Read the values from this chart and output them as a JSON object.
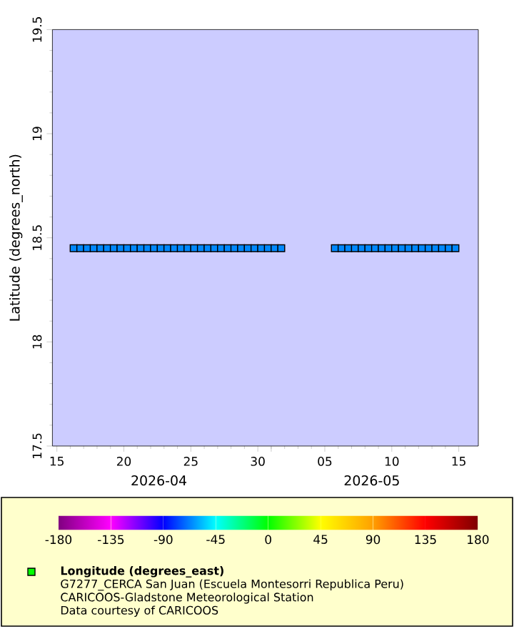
{
  "chart_data": {
    "type": "scatter",
    "ylabel": "Latitude (degrees_north)",
    "clabel": "Longitude (degrees_east)",
    "x": [
      "2026-04-16T06:00",
      "2026-04-16T18:00",
      "2026-04-17T06:00",
      "2026-04-17T18:00",
      "2026-04-18T06:00",
      "2026-04-18T18:00",
      "2026-04-19T06:00",
      "2026-04-19T18:00",
      "2026-04-20T06:00",
      "2026-04-20T18:00",
      "2026-04-21T06:00",
      "2026-04-21T18:00",
      "2026-04-22T06:00",
      "2026-04-22T18:00",
      "2026-04-23T06:00",
      "2026-04-23T18:00",
      "2026-04-24T06:00",
      "2026-04-24T18:00",
      "2026-04-25T06:00",
      "2026-04-25T18:00",
      "2026-04-26T06:00",
      "2026-04-26T18:00",
      "2026-04-27T06:00",
      "2026-04-27T18:00",
      "2026-04-28T06:00",
      "2026-04-28T18:00",
      "2026-04-29T06:00",
      "2026-04-29T18:00",
      "2026-04-30T06:00",
      "2026-04-30T18:00",
      "2026-05-01T06:00",
      "2026-05-01T18:00",
      "2026-05-05T18:00",
      "2026-05-06T06:00",
      "2026-05-06T18:00",
      "2026-05-07T06:00",
      "2026-05-07T18:00",
      "2026-05-08T06:00",
      "2026-05-08T18:00",
      "2026-05-09T06:00",
      "2026-05-09T18:00",
      "2026-05-10T06:00",
      "2026-05-10T18:00",
      "2026-05-11T06:00",
      "2026-05-11T18:00",
      "2026-05-12T06:00",
      "2026-05-12T18:00",
      "2026-05-13T06:00",
      "2026-05-13T18:00",
      "2026-05-14T06:00",
      "2026-05-14T18:00"
    ],
    "values": [
      18.45,
      18.45,
      18.45,
      18.45,
      18.45,
      18.45,
      18.45,
      18.45,
      18.45,
      18.45,
      18.45,
      18.45,
      18.45,
      18.45,
      18.45,
      18.45,
      18.45,
      18.45,
      18.45,
      18.45,
      18.45,
      18.45,
      18.45,
      18.45,
      18.45,
      18.45,
      18.45,
      18.45,
      18.45,
      18.45,
      18.45,
      18.45,
      18.45,
      18.45,
      18.45,
      18.45,
      18.45,
      18.45,
      18.45,
      18.45,
      18.45,
      18.45,
      18.45,
      18.45,
      18.45,
      18.45,
      18.45,
      18.45,
      18.45,
      18.45,
      18.45
    ],
    "cvalues": [
      -66,
      -66,
      -66,
      -66,
      -66,
      -66,
      -66,
      -66,
      -66,
      -66,
      -66,
      -66,
      -66,
      -66,
      -66,
      -66,
      -66,
      -66,
      -66,
      -66,
      -66,
      -66,
      -66,
      -66,
      -66,
      -66,
      -66,
      -66,
      -66,
      -66,
      -66,
      -66,
      -66,
      -66,
      -66,
      -66,
      -66,
      -66,
      -66,
      -66,
      -66,
      -66,
      -66,
      -66,
      -66,
      -66,
      -66,
      -66,
      -66,
      -66,
      -66
    ],
    "clim": [
      -180,
      180
    ],
    "cticks": [
      -180,
      -135,
      -90,
      -45,
      0,
      45,
      90,
      135,
      180
    ],
    "marker": "square",
    "xlim": [
      "2026-04-14T16:00",
      "2026-05-16T11:00"
    ],
    "xticks": [
      {
        "value": "2026-04-15",
        "label": "15"
      },
      {
        "value": "2026-04-20",
        "label": "20"
      },
      {
        "value": "2026-04-25",
        "label": "25"
      },
      {
        "value": "2026-04-30",
        "label": "30"
      },
      {
        "value": "2026-05-01",
        "label": null
      },
      {
        "value": "2026-05-05",
        "label": "05"
      },
      {
        "value": "2026-05-10",
        "label": "10"
      },
      {
        "value": "2026-05-15",
        "label": "15"
      }
    ],
    "ylim": [
      17.5,
      19.5
    ],
    "yticks": [
      17.5,
      18,
      18.5,
      19,
      19.5
    ],
    "annotations": [
      "2026-04",
      "2026-05",
      "G7277_CERCA San Juan (Escuela Montesorri Republica Peru)",
      "CARICOOS-Gladstone Meteorological Station",
      "Data courtesy of CARICOOS"
    ]
  }
}
